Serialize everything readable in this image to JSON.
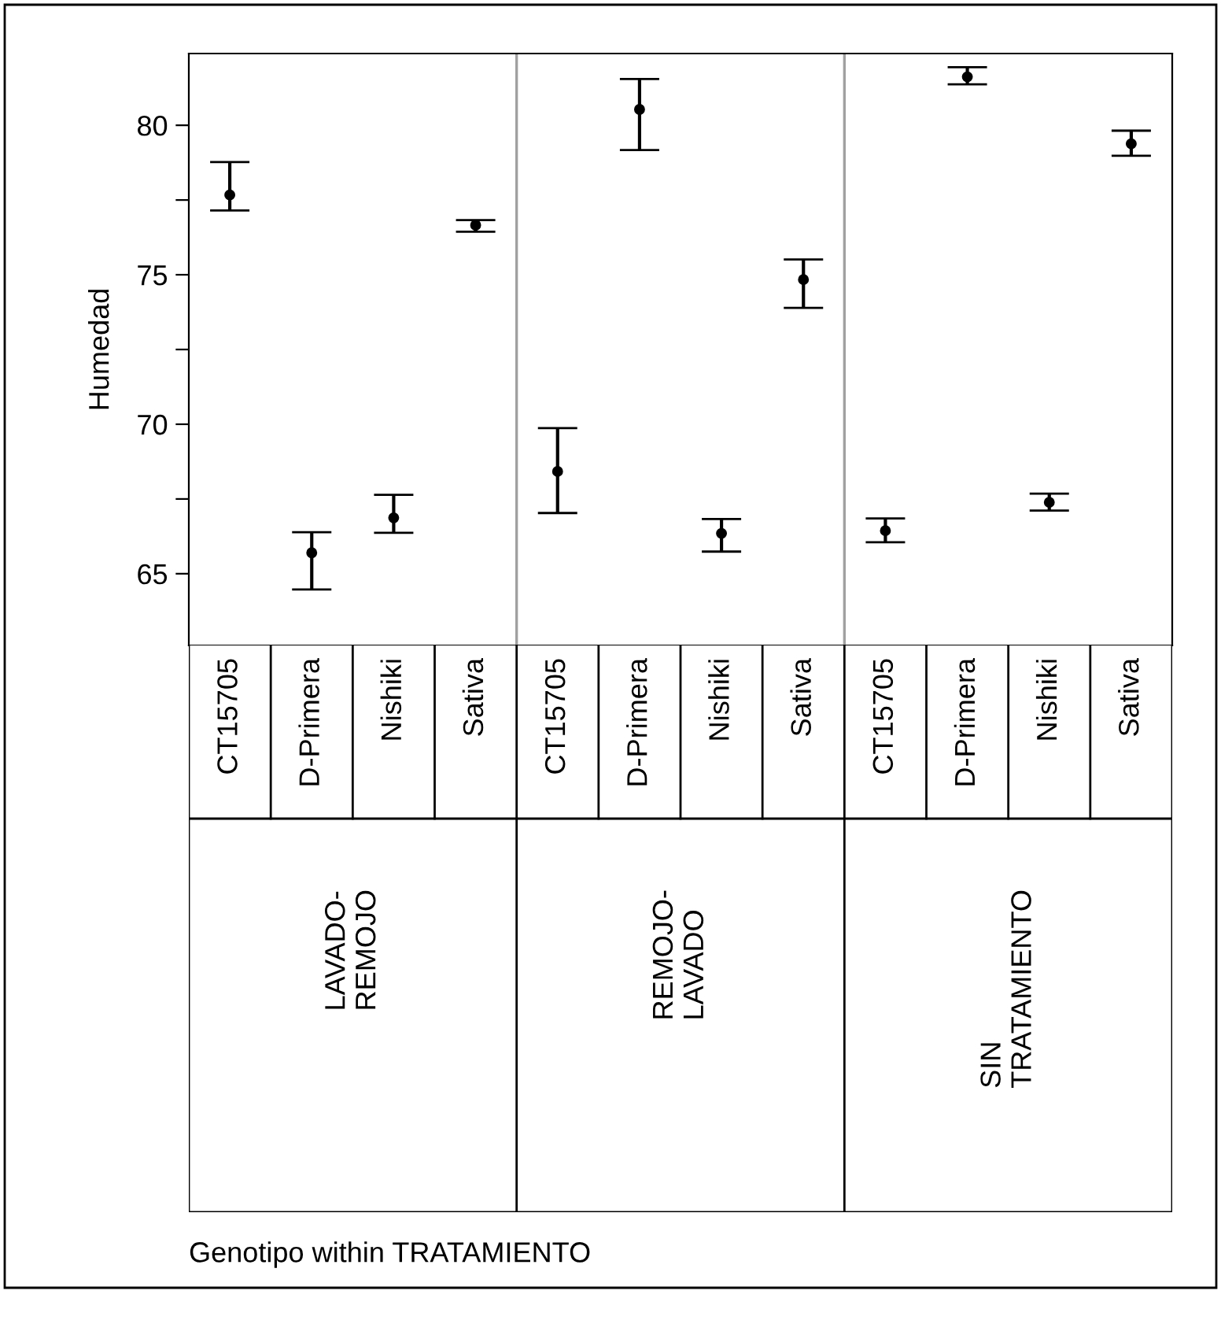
{
  "chart_data": {
    "type": "scatter",
    "ylabel": "Humedad",
    "marker": "circle",
    "categories": [
      "CT15705",
      "D-Primera",
      "Nishiki",
      "Sativa",
      "CT15705",
      "D-Primera",
      "Nishiki",
      "Sativa",
      "CT15705",
      "D-Primera",
      "Nishiki",
      "Sativa"
    ],
    "series": [
      {
        "color": "#000000",
        "values": [
          77.67,
          65.7,
          66.87,
          76.66,
          68.42,
          80.53,
          66.35,
          74.84,
          66.44,
          81.62,
          67.39,
          79.38
        ],
        "errors": [
          [
            77.15,
            78.77
          ],
          [
            64.47,
            66.39
          ],
          [
            66.37,
            67.64
          ],
          [
            76.44,
            76.83
          ],
          [
            67.03,
            69.87
          ],
          [
            79.17,
            81.55
          ],
          [
            65.74,
            66.83
          ],
          [
            73.89,
            75.51
          ],
          [
            66.05,
            66.85
          ],
          [
            81.37,
            81.94
          ],
          [
            67.11,
            67.68
          ],
          [
            78.98,
            79.82
          ]
        ]
      }
    ],
    "ylim": [
      62.6,
      82.4
    ],
    "yticks": [
      65,
      {
        "value": 67.5,
        "label": null
      },
      70,
      {
        "value": 72.5,
        "label": null
      },
      75,
      {
        "value": 77.5,
        "label": null
      },
      80
    ],
    "annotations": [
      "LAVADO-\nREMOJO",
      "REMOJO-\nLAVADO",
      "SIN\nTRATAMIENTO",
      "Genotipo within TRATAMIENTO"
    ],
    "grid": false,
    "legend": false
  }
}
